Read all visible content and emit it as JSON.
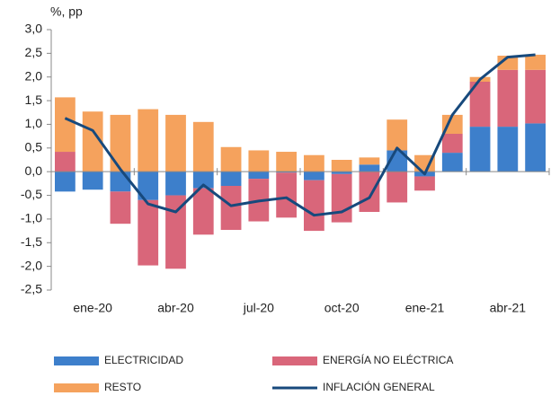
{
  "chart_data": {
    "type": "bar",
    "stacked": true,
    "y_unit": "%, pp",
    "categories": [
      "ene-20",
      null,
      null,
      "abr-20",
      null,
      null,
      "jul-20",
      null,
      null,
      "oct-20",
      null,
      null,
      "ene-21",
      null,
      null,
      "abr-21",
      null,
      null
    ],
    "series": [
      {
        "name": "ELECTRICIDAD",
        "color": "#3d7fcb",
        "values": [
          -0.42,
          -0.38,
          -0.42,
          -0.6,
          -0.5,
          -0.35,
          -0.3,
          -0.15,
          -0.02,
          -0.18,
          -0.05,
          0.15,
          0.45,
          -0.1,
          0.4,
          0.95,
          0.95,
          1.02
        ]
      },
      {
        "name": "ENERGÍA NO ELÉCTRICA",
        "color": "#d9667a",
        "values": [
          0.42,
          0,
          -0.68,
          -1.38,
          -1.55,
          -0.98,
          -0.93,
          -0.9,
          -0.95,
          -1.07,
          -1.02,
          -0.85,
          -0.65,
          -0.3,
          0.4,
          0.95,
          1.2,
          1.13
        ]
      },
      {
        "name": "RESTO",
        "color": "#f5a25d",
        "values": [
          1.15,
          1.27,
          1.2,
          1.32,
          1.2,
          1.05,
          0.52,
          0.45,
          0.42,
          0.35,
          0.25,
          0.15,
          0.65,
          0.35,
          0.4,
          0.1,
          0.3,
          0.32
        ]
      },
      {
        "name": "INFLACIÓN GENERAL",
        "color": "#17497c",
        "type": "line",
        "values": [
          1.13,
          0.87,
          0.05,
          -0.68,
          -0.85,
          -0.28,
          -0.72,
          -0.62,
          -0.55,
          -0.92,
          -0.85,
          -0.55,
          0.5,
          -0.05,
          1.2,
          1.95,
          2.42,
          2.47
        ]
      }
    ],
    "ylim": [
      -2.5,
      3.0
    ],
    "yticks": [
      {
        "value": 3.0,
        "label": "3,0"
      },
      {
        "value": 2.5,
        "label": "2,5"
      },
      {
        "value": 2.0,
        "label": "2,0"
      },
      {
        "value": 1.5,
        "label": "1,5"
      },
      {
        "value": 1.0,
        "label": "1,0"
      },
      {
        "value": 0.5,
        "label": "0,5"
      },
      {
        "value": 0,
        "label": "0,0"
      },
      {
        "value": -0.5,
        "label": "-0,5"
      },
      {
        "value": -1.0,
        "label": "-1,0"
      },
      {
        "value": -1.5,
        "label": "-1,5"
      },
      {
        "value": -2.0,
        "label": "-2,0"
      },
      {
        "value": -2.5,
        "label": "-2,5"
      }
    ],
    "grid": false,
    "legend": "bottom"
  }
}
